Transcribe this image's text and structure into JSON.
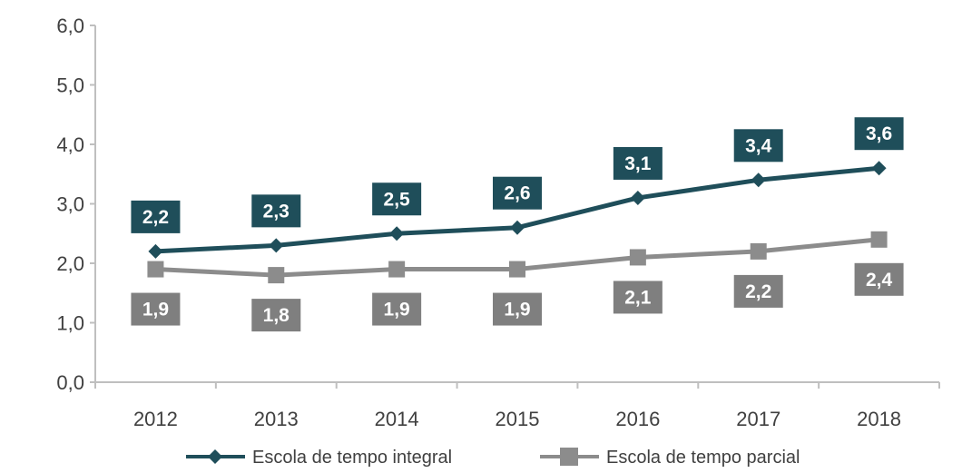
{
  "chart_data": {
    "type": "line",
    "title": "",
    "xlabel": "",
    "ylabel": "",
    "categories": [
      "2012",
      "2013",
      "2014",
      "2015",
      "2016",
      "2017",
      "2018"
    ],
    "ylim": [
      0,
      6
    ],
    "yticks": [
      "0,0",
      "1,0",
      "2,0",
      "3,0",
      "4,0",
      "5,0",
      "6,0"
    ],
    "grid": false,
    "legend_position": "bottom",
    "series": [
      {
        "name": "Escola de tempo integral",
        "values": [
          2.2,
          2.3,
          2.5,
          2.6,
          3.1,
          3.4,
          3.6
        ],
        "labels": [
          "2,2",
          "2,3",
          "2,5",
          "2,6",
          "3,1",
          "3,4",
          "3,6"
        ],
        "color": "#1f4e5a",
        "label_color": "#1f4e5a",
        "marker": "diamond"
      },
      {
        "name": "Escola de tempo parcial",
        "values": [
          1.9,
          1.8,
          1.9,
          1.9,
          2.1,
          2.2,
          2.4
        ],
        "labels": [
          "1,9",
          "1,8",
          "1,9",
          "1,9",
          "2,1",
          "2,2",
          "2,4"
        ],
        "color": "#8c8c8c",
        "label_color": "#7f7f7f",
        "marker": "square"
      }
    ]
  }
}
